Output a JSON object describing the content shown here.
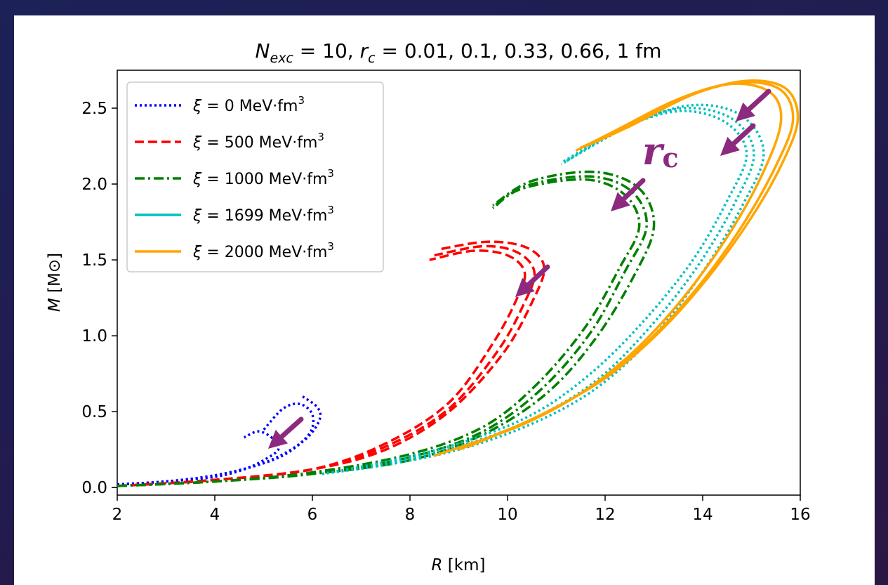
{
  "chart_data": {
    "type": "line",
    "title": {
      "n_symbol": "N",
      "n_subscript": "exc",
      "n_value": " = 10, ",
      "r_symbol": "r",
      "r_subscript": "c",
      "r_values": " =  0.01, 0.1, 0.33, 0.66, 1 fm"
    },
    "xlabel": {
      "symbol": "R",
      "unit": " [km]"
    },
    "ylabel": {
      "symbol": "M",
      "unit": " [M⊙]"
    },
    "xlim": [
      2,
      16
    ],
    "ylim": [
      -0.05,
      2.75
    ],
    "xticks": [
      "2",
      "4",
      "6",
      "8",
      "10",
      "12",
      "14",
      "16"
    ],
    "yticks": [
      "0.0",
      "0.5",
      "1.0",
      "1.5",
      "2.0",
      "2.5"
    ],
    "grid": false,
    "legend_position": "top-left",
    "annotation": {
      "symbol": "r",
      "subscript": "c",
      "color": "#8b2a7f"
    },
    "series": [
      {
        "name": {
          "prefix": "ξ",
          "value": " = 0 MeV·fm",
          "sup": "3"
        },
        "color": "#0000ff",
        "style": "dotted",
        "curves": [
          [
            [
              2.0,
              0.02
            ],
            [
              3.0,
              0.04
            ],
            [
              4.0,
              0.08
            ],
            [
              4.8,
              0.14
            ],
            [
              5.4,
              0.22
            ],
            [
              5.9,
              0.33
            ],
            [
              6.15,
              0.45
            ],
            [
              6.1,
              0.53
            ],
            [
              5.8,
              0.6
            ]
          ],
          [
            [
              2.0,
              0.02
            ],
            [
              3.0,
              0.04
            ],
            [
              4.0,
              0.08
            ],
            [
              4.9,
              0.15
            ],
            [
              5.5,
              0.23
            ],
            [
              5.95,
              0.36
            ],
            [
              6.0,
              0.48
            ],
            [
              5.75,
              0.55
            ],
            [
              5.4,
              0.52
            ],
            [
              5.0,
              0.38
            ]
          ],
          [
            [
              2.0,
              0.02
            ],
            [
              3.0,
              0.04
            ],
            [
              4.0,
              0.07
            ],
            [
              4.6,
              0.12
            ],
            [
              5.0,
              0.18
            ],
            [
              5.3,
              0.25
            ],
            [
              5.2,
              0.32
            ],
            [
              4.9,
              0.37
            ],
            [
              4.6,
              0.33
            ]
          ]
        ]
      },
      {
        "name": {
          "prefix": "ξ",
          "value": " = 500 MeV·fm",
          "sup": "3"
        },
        "color": "#ff0000",
        "style": "dashed",
        "curves": [
          [
            [
              2.0,
              0.01
            ],
            [
              4.0,
              0.05
            ],
            [
              6.0,
              0.12
            ],
            [
              7.5,
              0.25
            ],
            [
              8.8,
              0.5
            ],
            [
              9.9,
              0.88
            ],
            [
              10.5,
              1.22
            ],
            [
              10.75,
              1.45
            ],
            [
              10.4,
              1.58
            ],
            [
              9.6,
              1.62
            ],
            [
              8.6,
              1.57
            ]
          ],
          [
            [
              2.0,
              0.01
            ],
            [
              4.0,
              0.05
            ],
            [
              6.0,
              0.12
            ],
            [
              7.5,
              0.27
            ],
            [
              8.8,
              0.52
            ],
            [
              9.8,
              0.9
            ],
            [
              10.35,
              1.22
            ],
            [
              10.55,
              1.42
            ],
            [
              10.2,
              1.55
            ],
            [
              9.5,
              1.59
            ],
            [
              8.5,
              1.53
            ]
          ],
          [
            [
              2.0,
              0.01
            ],
            [
              4.0,
              0.05
            ],
            [
              6.0,
              0.12
            ],
            [
              7.5,
              0.29
            ],
            [
              8.8,
              0.56
            ],
            [
              9.7,
              0.95
            ],
            [
              10.2,
              1.25
            ],
            [
              10.35,
              1.42
            ],
            [
              10.0,
              1.53
            ],
            [
              9.3,
              1.56
            ],
            [
              8.4,
              1.5
            ]
          ]
        ]
      },
      {
        "name": {
          "prefix": "ξ",
          "value": " = 1000 MeV·fm",
          "sup": "3"
        },
        "color": "#008000",
        "style": "dashdot",
        "curves": [
          [
            [
              2.0,
              0.01
            ],
            [
              4.0,
              0.04
            ],
            [
              6.0,
              0.09
            ],
            [
              8.0,
              0.18
            ],
            [
              9.5,
              0.35
            ],
            [
              10.8,
              0.62
            ],
            [
              11.8,
              0.98
            ],
            [
              12.6,
              1.4
            ],
            [
              13.0,
              1.72
            ],
            [
              12.7,
              1.97
            ],
            [
              11.8,
              2.08
            ],
            [
              10.5,
              2.02
            ],
            [
              9.7,
              1.86
            ]
          ],
          [
            [
              2.0,
              0.01
            ],
            [
              4.0,
              0.04
            ],
            [
              6.0,
              0.09
            ],
            [
              8.0,
              0.2
            ],
            [
              9.5,
              0.37
            ],
            [
              10.7,
              0.65
            ],
            [
              11.7,
              1.02
            ],
            [
              12.4,
              1.42
            ],
            [
              12.85,
              1.72
            ],
            [
              12.55,
              1.95
            ],
            [
              11.7,
              2.05
            ],
            [
              10.4,
              1.99
            ],
            [
              9.7,
              1.85
            ]
          ],
          [
            [
              2.0,
              0.01
            ],
            [
              4.0,
              0.04
            ],
            [
              6.0,
              0.1
            ],
            [
              8.0,
              0.22
            ],
            [
              9.5,
              0.4
            ],
            [
              10.6,
              0.68
            ],
            [
              11.6,
              1.06
            ],
            [
              12.3,
              1.45
            ],
            [
              12.7,
              1.72
            ],
            [
              12.4,
              1.93
            ],
            [
              11.6,
              2.03
            ],
            [
              10.3,
              1.97
            ],
            [
              9.7,
              1.84
            ]
          ]
        ]
      },
      {
        "name": {
          "prefix": "ξ",
          "value": " = 1699 MeV·fm",
          "sup": "3"
        },
        "color": "#00bfbf",
        "style": "dotted",
        "curves": [
          [
            [
              6.2,
              0.09
            ],
            [
              7.5,
              0.15
            ],
            [
              9.0,
              0.25
            ],
            [
              10.5,
              0.42
            ],
            [
              11.8,
              0.65
            ],
            [
              13.0,
              1.0
            ],
            [
              14.0,
              1.42
            ],
            [
              14.8,
              1.85
            ],
            [
              15.25,
              2.2
            ],
            [
              14.8,
              2.45
            ],
            [
              13.8,
              2.52
            ],
            [
              12.6,
              2.4
            ],
            [
              11.2,
              2.15
            ]
          ],
          [
            [
              6.2,
              0.09
            ],
            [
              7.5,
              0.16
            ],
            [
              9.0,
              0.27
            ],
            [
              10.5,
              0.45
            ],
            [
              11.8,
              0.7
            ],
            [
              12.9,
              1.05
            ],
            [
              13.9,
              1.46
            ],
            [
              14.65,
              1.87
            ],
            [
              15.05,
              2.2
            ],
            [
              14.6,
              2.43
            ],
            [
              13.6,
              2.5
            ],
            [
              12.4,
              2.38
            ],
            [
              11.1,
              2.14
            ]
          ],
          [
            [
              6.2,
              0.09
            ],
            [
              7.5,
              0.17
            ],
            [
              9.0,
              0.29
            ],
            [
              10.5,
              0.48
            ],
            [
              11.7,
              0.75
            ],
            [
              12.8,
              1.1
            ],
            [
              13.8,
              1.5
            ],
            [
              14.5,
              1.89
            ],
            [
              14.9,
              2.2
            ],
            [
              14.45,
              2.41
            ],
            [
              13.5,
              2.48
            ],
            [
              12.3,
              2.36
            ],
            [
              11.1,
              2.13
            ]
          ]
        ]
      },
      {
        "name": {
          "prefix": "ξ",
          "value": " = 2000 MeV·fm",
          "sup": "3"
        },
        "color": "#ffa500",
        "style": "solid",
        "curves": [
          [
            [
              8.5,
              0.21
            ],
            [
              10.2,
              0.4
            ],
            [
              11.5,
              0.62
            ],
            [
              12.6,
              0.9
            ],
            [
              13.6,
              1.25
            ],
            [
              14.5,
              1.65
            ],
            [
              15.2,
              2.05
            ],
            [
              15.6,
              2.4
            ],
            [
              15.4,
              2.6
            ],
            [
              14.6,
              2.66
            ],
            [
              13.5,
              2.56
            ],
            [
              12.2,
              2.35
            ],
            [
              11.4,
              2.22
            ]
          ],
          [
            [
              9.0,
              0.25
            ],
            [
              10.5,
              0.45
            ],
            [
              11.8,
              0.68
            ],
            [
              12.9,
              0.97
            ],
            [
              13.9,
              1.32
            ],
            [
              14.8,
              1.72
            ],
            [
              15.5,
              2.12
            ],
            [
              15.85,
              2.42
            ],
            [
              15.6,
              2.62
            ],
            [
              14.8,
              2.67
            ],
            [
              13.7,
              2.58
            ],
            [
              12.4,
              2.37
            ],
            [
              11.5,
              2.24
            ]
          ],
          [
            [
              9.2,
              0.27
            ],
            [
              10.7,
              0.48
            ],
            [
              12.0,
              0.72
            ],
            [
              13.1,
              1.02
            ],
            [
              14.1,
              1.38
            ],
            [
              15.0,
              1.78
            ],
            [
              15.65,
              2.15
            ],
            [
              15.95,
              2.43
            ],
            [
              15.7,
              2.63
            ],
            [
              14.9,
              2.68
            ],
            [
              13.8,
              2.59
            ],
            [
              12.5,
              2.38
            ],
            [
              11.6,
              2.25
            ]
          ]
        ]
      }
    ]
  }
}
